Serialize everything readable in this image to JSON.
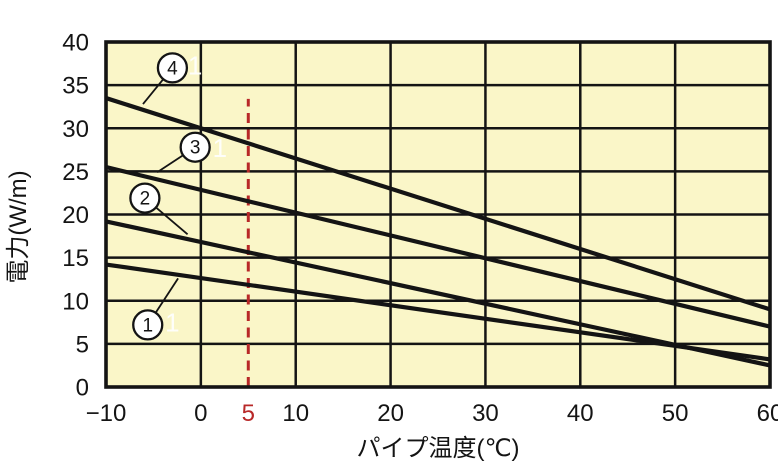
{
  "chart_data": {
    "type": "line",
    "title": "",
    "xlabel": "パイプ温度(℃)",
    "ylabel": "電力(W/m)",
    "xlim": [
      -10,
      60
    ],
    "ylim": [
      0,
      40
    ],
    "grid": true,
    "legend_position": "none",
    "plot_background": "#faf6c8",
    "line_color": "#141414",
    "grid_color": "#141414",
    "axis_text_color": "#141414",
    "x_ticks": [
      {
        "value": -10,
        "label": "−10"
      },
      {
        "value": 0,
        "label": "0"
      },
      {
        "value": 5,
        "label": "5",
        "color": "#b82828"
      },
      {
        "value": 10,
        "label": "10"
      },
      {
        "value": 20,
        "label": "20"
      },
      {
        "value": 30,
        "label": "30"
      },
      {
        "value": 40,
        "label": "40"
      },
      {
        "value": 50,
        "label": "50"
      },
      {
        "value": 60,
        "label": "60"
      }
    ],
    "y_ticks": [
      {
        "value": 0,
        "label": "0"
      },
      {
        "value": 5,
        "label": "5"
      },
      {
        "value": 10,
        "label": "10"
      },
      {
        "value": 15,
        "label": "15"
      },
      {
        "value": 20,
        "label": "20"
      },
      {
        "value": 25,
        "label": "25"
      },
      {
        "value": 30,
        "label": "30"
      },
      {
        "value": 35,
        "label": "35"
      },
      {
        "value": 40,
        "label": "40"
      }
    ],
    "highlight_line": {
      "x": 5,
      "label": "5",
      "color": "#b82828",
      "style": "dashed",
      "y_from": 0,
      "y_to": 33.4
    },
    "series": [
      {
        "id": "1",
        "label": "1",
        "points": [
          [
            -10,
            14.2
          ],
          [
            60,
            3.2
          ]
        ]
      },
      {
        "id": "2",
        "label": "2",
        "points": [
          [
            -10,
            19.2
          ],
          [
            60,
            2.5
          ]
        ]
      },
      {
        "id": "3",
        "label": "3",
        "points": [
          [
            -10,
            25.5
          ],
          [
            60,
            7.0
          ]
        ]
      },
      {
        "id": "4",
        "label": "4",
        "points": [
          [
            -10,
            33.5
          ],
          [
            60,
            9.0
          ]
        ]
      }
    ],
    "series_markers": [
      {
        "label": "1",
        "circle_at": [
          -5.6,
          7.2
        ],
        "points_to": [
          -2.4,
          12.6
        ]
      },
      {
        "label": "2",
        "circle_at": [
          -5.9,
          21.9
        ],
        "points_to": [
          -1.4,
          17.7
        ]
      },
      {
        "label": "3",
        "circle_at": [
          -0.6,
          27.8
        ],
        "points_to": [
          -4.6,
          24.9
        ]
      },
      {
        "label": "4",
        "circle_at": [
          -3.0,
          37.0
        ],
        "points_to": [
          -6.1,
          32.8
        ]
      }
    ],
    "watermarks": [
      {
        "text": "1",
        "at": [
          -0.6,
          37.3
        ]
      },
      {
        "text": "1",
        "at": [
          2.0,
          27.7
        ]
      },
      {
        "text": "1",
        "at": [
          -3.0,
          7.5
        ]
      }
    ]
  }
}
